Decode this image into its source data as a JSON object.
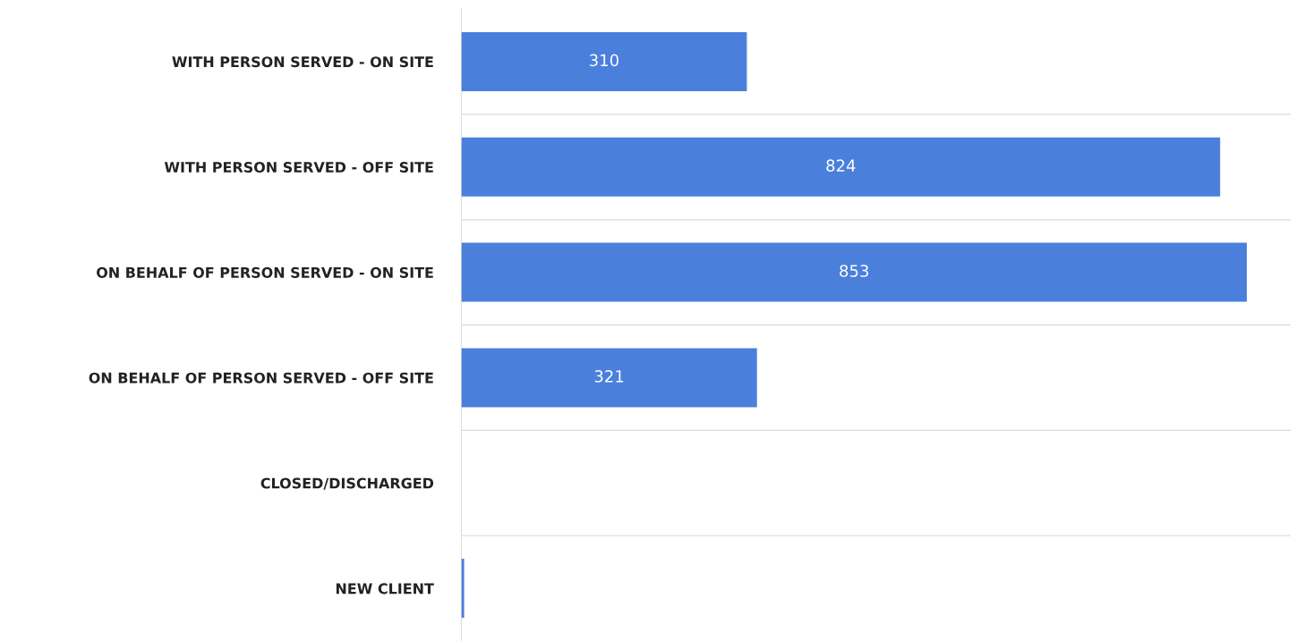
{
  "chart_data": {
    "type": "bar",
    "orientation": "horizontal",
    "categories": [
      "WITH PERSON SERVED - ON SITE",
      "WITH PERSON SERVED - OFF SITE",
      "ON BEHALF OF PERSON SERVED - ON SITE",
      "ON BEHALF OF PERSON SERVED - OFF SITE",
      "CLOSED/DISCHARGED",
      "NEW CLIENT"
    ],
    "values": [
      310,
      824,
      853,
      321,
      0,
      3
    ],
    "value_labels": [
      "310",
      "824",
      "853",
      "321",
      null,
      null
    ],
    "color": "#4a7fdc",
    "grid": "y",
    "tick_labels": "y"
  }
}
